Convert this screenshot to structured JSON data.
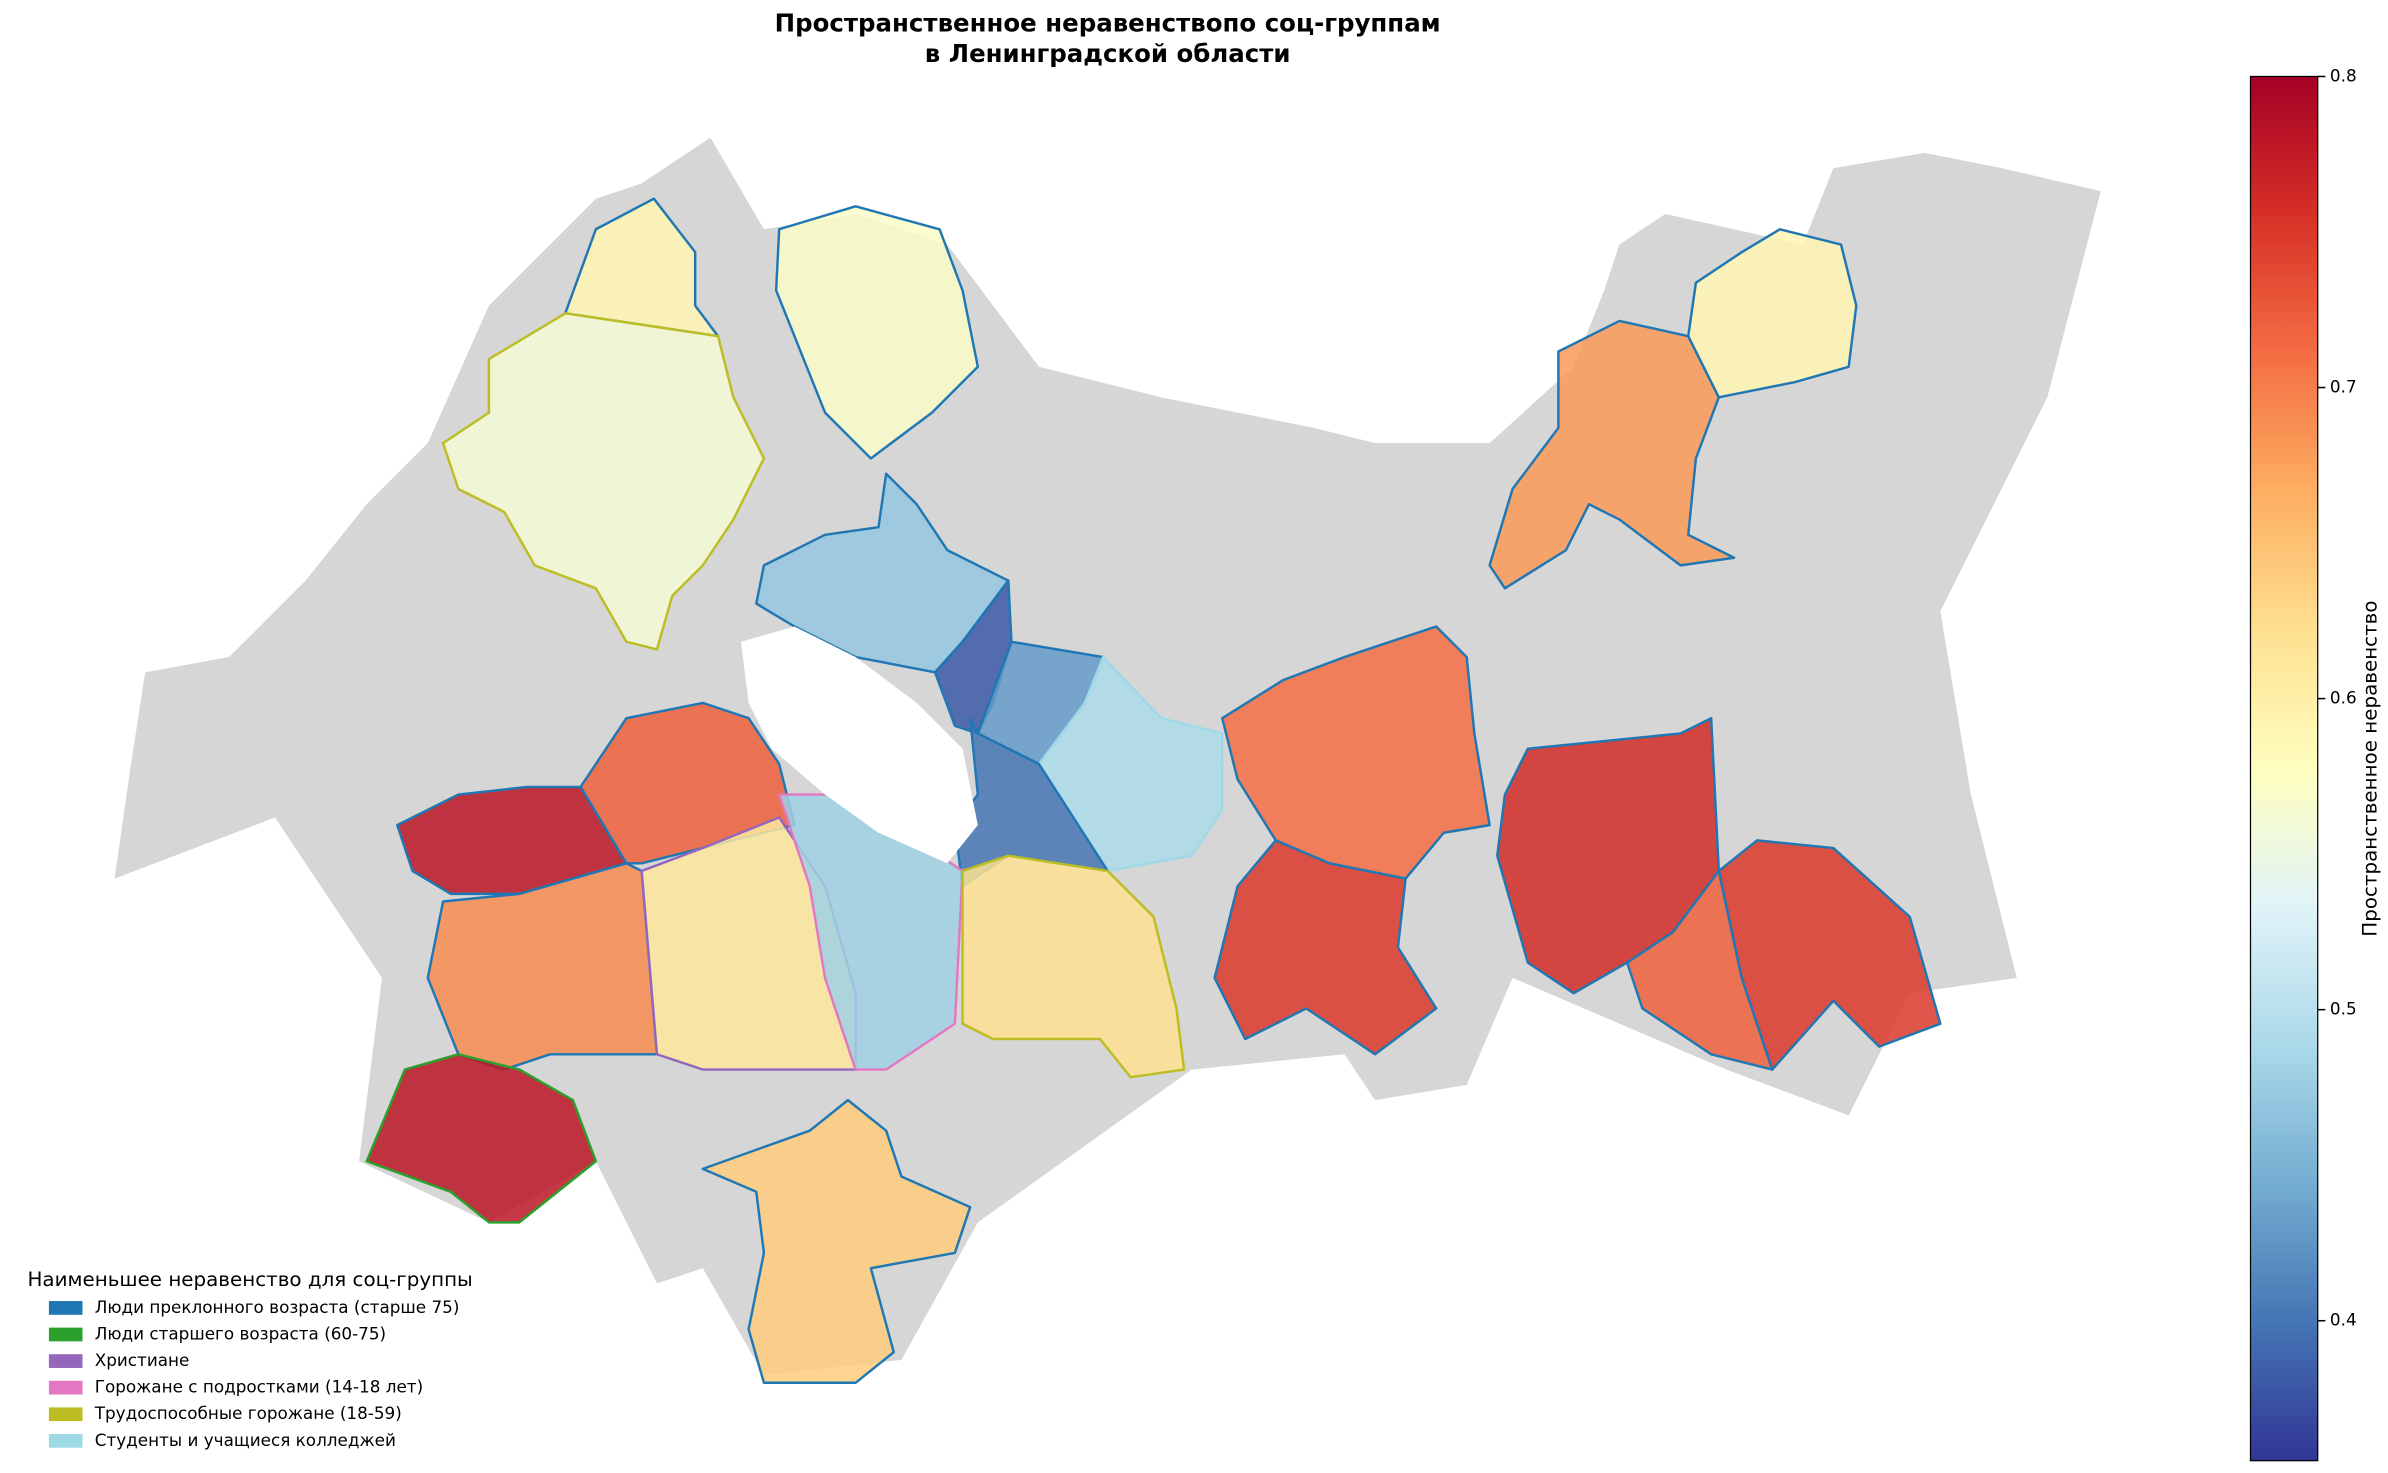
{
  "title_lines": [
    "Пространственное неравенствопо соц-группам",
    "в Ленинградской области"
  ],
  "zone_values": [
    0.59,
    0.56,
    0.57,
    0.47,
    0.38,
    0.43,
    0.49,
    0.4,
    0.78,
    0.72,
    0.69,
    0.61,
    0.48,
    0.62,
    0.78,
    0.64,
    0.71,
    0.75,
    0.76,
    0.72,
    0.75,
    0.68,
    0.59
  ],
  "colorbar": {
    "label": "Пространственное неравенство",
    "clim": [
      0.355,
      0.8
    ],
    "ticks": [
      0.4,
      0.5,
      0.6,
      0.7,
      0.8
    ]
  },
  "legend": {
    "title": "Наименьшее неравенство для соц-группы",
    "items": [
      {
        "name": "Люди преклонного возраста (старше 75)",
        "color": "#1f77b4"
      },
      {
        "name": "Люди старшего возраста (60-75)",
        "color": "#2ca02c"
      },
      {
        "name": "Христиане",
        "color": "#9467bd"
      },
      {
        "name": "Горожане с подростками (14-18 лет)",
        "color": "#e377c2"
      },
      {
        "name": "Трудоспособные горожане (18-59)",
        "color": "#bcbd22"
      },
      {
        "name": "Студенты и учащиеся колледжей",
        "color": "#9edae5"
      }
    ]
  }
}
